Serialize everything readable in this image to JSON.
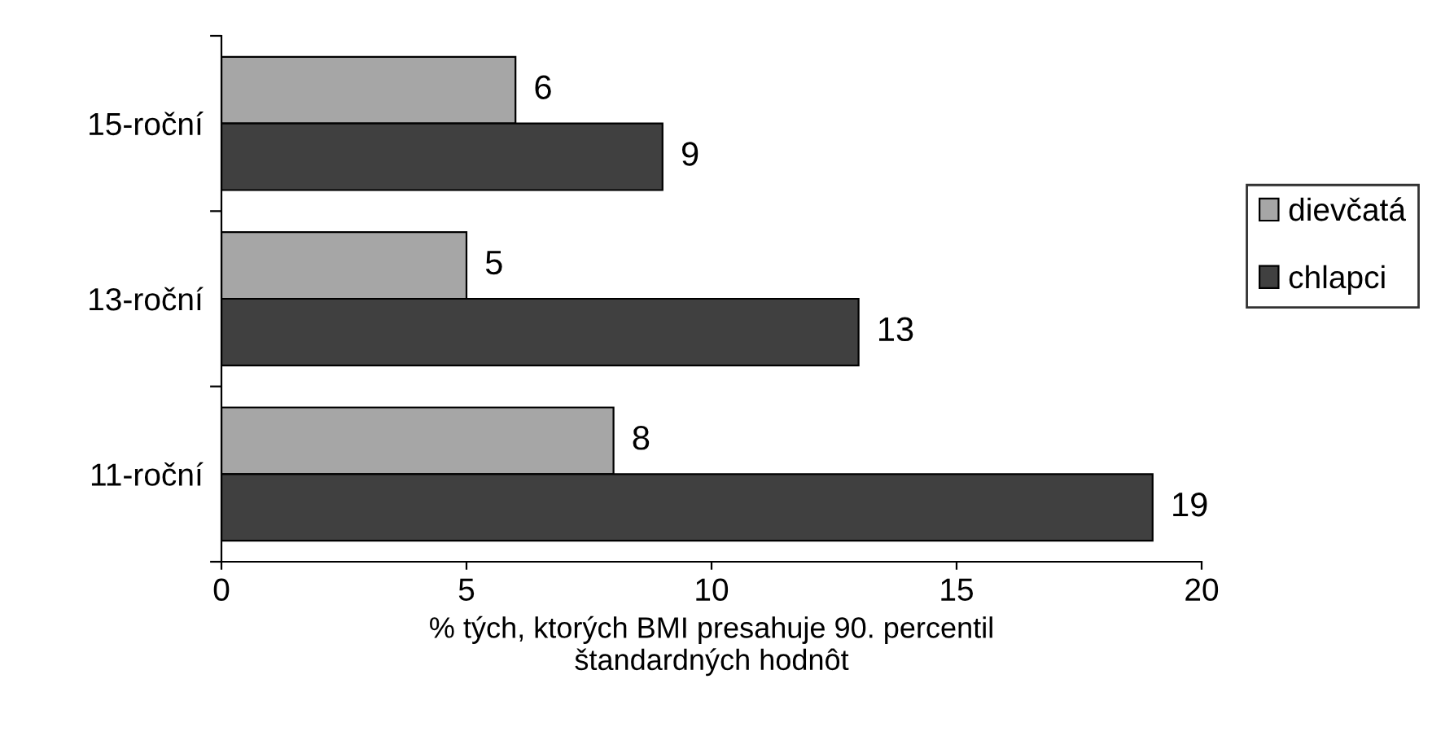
{
  "chart_data": {
    "type": "bar",
    "orientation": "horizontal",
    "categories": [
      "15-roční",
      "13-roční",
      "11-roční"
    ],
    "series": [
      {
        "name": "dievčatá",
        "color": "#a6a6a6",
        "values": [
          6,
          5,
          8
        ]
      },
      {
        "name": "chlapci",
        "color": "#404040",
        "values": [
          9,
          13,
          19
        ]
      }
    ],
    "xlabel": "% tých, ktorých BMI presahuje 90. percentil\nštandardných hodnôt",
    "xlim": [
      0,
      20
    ],
    "xticks": [
      0,
      5,
      10,
      15,
      20
    ],
    "data_labels": true,
    "legend": "right",
    "grid": false
  }
}
